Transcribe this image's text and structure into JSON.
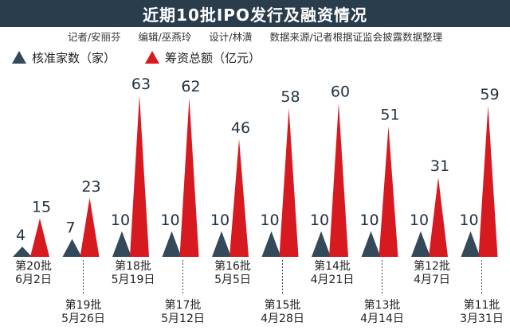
{
  "header": {
    "title": "近期10批IPO发行及融资情况",
    "credits": [
      "记者/安丽芬",
      "编辑/巫燕玲",
      "设计/林潢",
      "数据来源/记者根据证监会披露数据整理"
    ]
  },
  "colors": {
    "count": "#34495a",
    "amount": "#d71920",
    "title_bg": "#2a3d4d"
  },
  "chart_data": {
    "type": "bar",
    "title": "近期10批IPO发行及融资情况",
    "categories": [
      {
        "batch": "第20批",
        "date": "6月2日"
      },
      {
        "batch": "第19批",
        "date": "5月26日"
      },
      {
        "batch": "第18批",
        "date": "5月19日"
      },
      {
        "batch": "第17批",
        "date": "5月12日"
      },
      {
        "batch": "第16批",
        "date": "5月5日"
      },
      {
        "batch": "第15批",
        "date": "4月28日"
      },
      {
        "batch": "第14批",
        "date": "4月21日"
      },
      {
        "batch": "第13批",
        "date": "4月14日"
      },
      {
        "batch": "第12批",
        "date": "4月7日"
      },
      {
        "batch": "第11批",
        "date": "3月31日"
      }
    ],
    "series": [
      {
        "name": "核准家数（家）",
        "values": [
          4,
          7,
          10,
          10,
          10,
          10,
          10,
          10,
          10,
          10
        ]
      },
      {
        "name": "筹资总额（亿元）",
        "values": [
          15,
          23,
          63,
          62,
          46,
          58,
          60,
          51,
          31,
          59
        ]
      }
    ],
    "scale_max": 63,
    "xlabel": "",
    "ylabel": ""
  }
}
